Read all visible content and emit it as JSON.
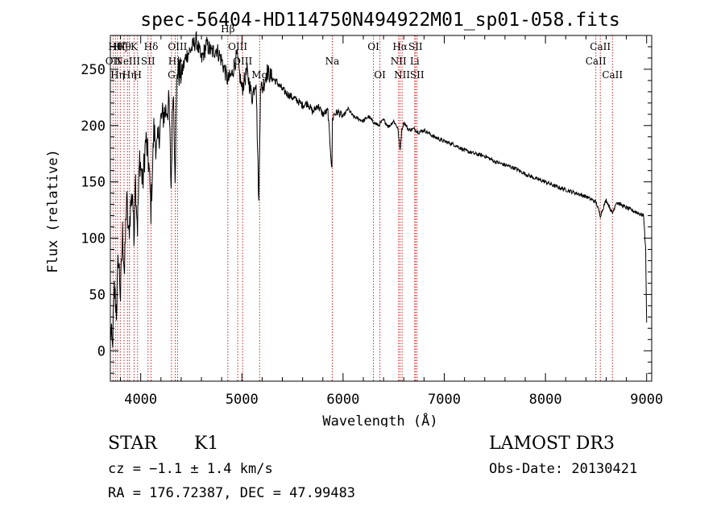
{
  "chart_data": {
    "type": "line",
    "title": "spec-56404-HD114750N494922M01_sp01-058.fits",
    "xlabel": "Wavelength (Å)",
    "ylabel": "Flux (relative)",
    "xlim": [
      3700,
      9050
    ],
    "ylim": [
      -27,
      280
    ],
    "xticks": [
      4000,
      5000,
      6000,
      7000,
      8000,
      9000
    ],
    "yticks": [
      0,
      50,
      100,
      150,
      200,
      250
    ],
    "grid": false,
    "series": [
      {
        "name": "spectrum",
        "x": [
          3700,
          3720,
          3740,
          3760,
          3780,
          3800,
          3820,
          3840,
          3860,
          3880,
          3900,
          3920,
          3933,
          3945,
          3968,
          3990,
          4020,
          4050,
          4080,
          4101,
          4130,
          4160,
          4200,
          4240,
          4280,
          4300,
          4320,
          4340,
          4360,
          4400,
          4450,
          4500,
          4550,
          4600,
          4650,
          4700,
          4750,
          4800,
          4861,
          4900,
          4950,
          5000,
          5050,
          5100,
          5140,
          5167,
          5184,
          5200,
          5250,
          5300,
          5350,
          5400,
          5450,
          5500,
          5550,
          5600,
          5650,
          5700,
          5750,
          5800,
          5850,
          5889,
          5895,
          5910,
          5950,
          6000,
          6050,
          6100,
          6150,
          6200,
          6250,
          6300,
          6350,
          6400,
          6450,
          6500,
          6540,
          6563,
          6580,
          6600,
          6650,
          6700,
          6750,
          6800,
          6900,
          7000,
          7100,
          7200,
          7300,
          7400,
          7500,
          7600,
          7700,
          7800,
          7900,
          8000,
          8100,
          8200,
          8300,
          8400,
          8500,
          8542,
          8600,
          8662,
          8700,
          8800,
          8900,
          8970,
          8990,
          9000
        ],
        "values": [
          20,
          2,
          55,
          35,
          85,
          48,
          105,
          68,
          138,
          100,
          128,
          142,
          95,
          160,
          110,
          172,
          148,
          188,
          165,
          125,
          196,
          178,
          205,
          212,
          218,
          145,
          238,
          160,
          250,
          245,
          262,
          268,
          276,
          258,
          272,
          265,
          268,
          258,
          240,
          245,
          262,
          232,
          248,
          225,
          242,
          130,
          238,
          232,
          248,
          242,
          238,
          232,
          228,
          225,
          222,
          218,
          220,
          212,
          218,
          210,
          213,
          160,
          205,
          210,
          212,
          208,
          215,
          208,
          206,
          204,
          208,
          203,
          200,
          205,
          199,
          204,
          198,
          178,
          196,
          203,
          196,
          197,
          194,
          196,
          190,
          186,
          183,
          178,
          175,
          173,
          168,
          165,
          162,
          157,
          153,
          150,
          146,
          143,
          140,
          137,
          132,
          120,
          134,
          122,
          132,
          127,
          123,
          120,
          90,
          25
        ]
      }
    ],
    "lines": [
      {
        "x": 3727,
        "label": "OII",
        "row": 2
      },
      {
        "x": 3750,
        "label": "Hθ",
        "row": 1
      },
      {
        "x": 3771,
        "label": "Hη",
        "row": 3
      },
      {
        "x": 3798,
        "label": "Hζ",
        "row": 1
      },
      {
        "x": 3835,
        "label": "Hθ",
        "row": 1
      },
      {
        "x": 3869,
        "label": "NeIII",
        "row": 2
      },
      {
        "x": 3889,
        "label": "Hη",
        "row": 3
      },
      {
        "x": 3934,
        "label": "K",
        "row": 1
      },
      {
        "x": 3969,
        "label": "H",
        "row": 3
      },
      {
        "x": 4072,
        "label": "SII",
        "row": 2
      },
      {
        "x": 4102,
        "label": "Hδ",
        "row": 1
      },
      {
        "x": 4304,
        "label": "G",
        "row": 3
      },
      {
        "x": 4341,
        "label": "Hγ",
        "row": 2
      },
      {
        "x": 4364,
        "label": "OIII",
        "row": 1
      },
      {
        "x": 4861,
        "label": "Hβ",
        "row": 0
      },
      {
        "x": 4959,
        "label": "OIII",
        "row": 1
      },
      {
        "x": 5007,
        "label": "OIII",
        "row": 2
      },
      {
        "x": 5175,
        "label": "Mg",
        "row": 3
      },
      {
        "x": 5893,
        "label": "Na",
        "row": 2
      },
      {
        "x": 6300,
        "label": "OI",
        "row": 1
      },
      {
        "x": 6364,
        "label": "OI",
        "row": 3
      },
      {
        "x": 6548,
        "label": "NII",
        "row": 2
      },
      {
        "x": 6563,
        "label": "Hα",
        "row": 1
      },
      {
        "x": 6583,
        "label": "NII",
        "row": 3
      },
      {
        "x": 6708,
        "label": "Li",
        "row": 2
      },
      {
        "x": 6716,
        "label": "SII",
        "row": 1
      },
      {
        "x": 6731,
        "label": "SII",
        "row": 3
      },
      {
        "x": 8498,
        "label": "CaII",
        "row": 2
      },
      {
        "x": 8542,
        "label": "CaII",
        "row": 1
      },
      {
        "x": 8662,
        "label": "CaII",
        "row": 3
      }
    ]
  },
  "info": {
    "object_type": "STAR",
    "object_class": "K1",
    "survey": "LAMOST DR3",
    "redshift": "cz = −1.1 ± 1.4 km/s",
    "obs_date": "Obs-Date: 20130421",
    "coordinates": "RA = 176.72387, DEC =  47.99483"
  },
  "colors": {
    "spectrum": "#000000",
    "line_markers": "#cc2222",
    "axes": "#000000"
  }
}
